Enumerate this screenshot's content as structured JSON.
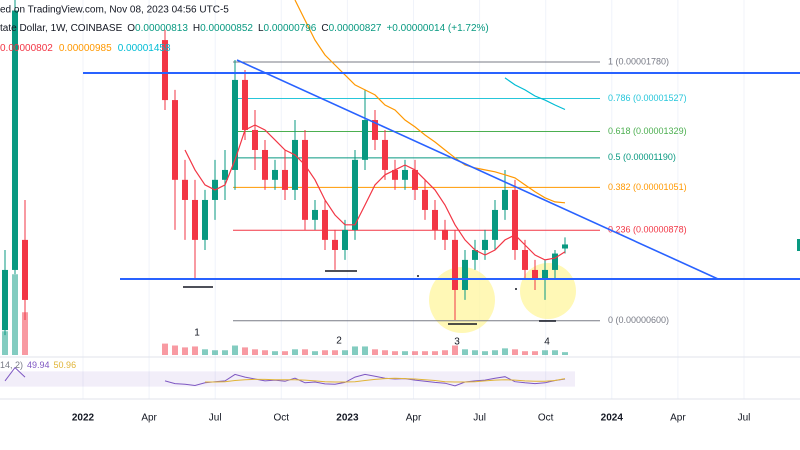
{
  "header": {
    "source": "ed on TradingView.com, Nov 08, 2023 04:56 UTC-5",
    "symbol": "tate Dollar, 1W, COINBASE",
    "ohlc_keys": [
      "O",
      "H",
      "L",
      "C"
    ],
    "change": "+0.00000014 (+1.72%)"
  },
  "chart_data": {
    "type": "candlestick",
    "log_scale": true,
    "ylim": [
      5.42e-06,
      2.31e-05
    ],
    "up_color": "#089981",
    "down_color": "#f23645",
    "candles": [
      [
        5.77e-06,
        8.08e-06,
        5.65e-06,
        7.43e-06
      ],
      [
        7.43e-06,
        2.31e-05,
        7.3e-06,
        2.21e-05
      ],
      [
        8.43e-06,
        9.97e-06,
        6.02e-06,
        6.55e-06
      ],
      null,
      null,
      null,
      null,
      null,
      null,
      null,
      null,
      null,
      null,
      null,
      null,
      null,
      [
        1.952e-05,
        2.036e-05,
        1.455e-05,
        1.517e-05
      ],
      [
        1.517e-05,
        1.583e-05,
        8.79e-06,
        1.085e-05
      ],
      [
        1.085e-05,
        1.18e-05,
        8.43e-06,
        9.97e-06
      ],
      [
        9.97e-06,
        1.085e-05,
        7.13e-06,
        8.43e-06
      ],
      [
        8.43e-06,
        1.04e-05,
        8.08e-06,
        9.97e-06
      ],
      [
        9.97e-06,
        1.18e-05,
        9.17e-06,
        1.085e-05
      ],
      [
        1.085e-05,
        1.23e-05,
        9.97e-06,
        1.131e-05
      ],
      [
        1.131e-05,
        1.795e-05,
        1.04e-05,
        1.651e-05
      ],
      [
        1.651e-05,
        1.721e-05,
        1.283e-05,
        1.338e-05
      ],
      [
        1.338e-05,
        1.455e-05,
        1.131e-05,
        1.23e-05
      ],
      [
        1.23e-05,
        1.283e-05,
        1.04e-05,
        1.085e-05
      ],
      [
        1.085e-05,
        1.18e-05,
        1.04e-05,
        1.131e-05
      ],
      [
        1.131e-05,
        1.23e-05,
        9.97e-06,
        1.04e-05
      ],
      [
        1.04e-05,
        1.395e-05,
        9.97e-06,
        1.283e-05
      ],
      [
        1.283e-05,
        1.338e-05,
        8.79e-06,
        9.17e-06
      ],
      [
        9.17e-06,
        9.97e-06,
        8.79e-06,
        9.56e-06
      ],
      [
        9.56e-06,
        9.97e-06,
        8.08e-06,
        8.43e-06
      ],
      [
        8.43e-06,
        8.79e-06,
        7.43e-06,
        8.08e-06
      ],
      [
        8.08e-06,
        9.17e-06,
        7.75e-06,
        8.79e-06
      ],
      [
        8.79e-06,
        1.23e-05,
        8.43e-06,
        1.18e-05
      ],
      [
        1.18e-05,
        1.583e-05,
        1.131e-05,
        1.395e-05
      ],
      [
        1.395e-05,
        1.455e-05,
        1.23e-05,
        1.283e-05
      ],
      [
        1.283e-05,
        1.338e-05,
        1.085e-05,
        1.131e-05
      ],
      [
        1.131e-05,
        1.18e-05,
        1.04e-05,
        1.085e-05
      ],
      [
        1.085e-05,
        1.18e-05,
        1.04e-05,
        1.131e-05
      ],
      [
        1.131e-05,
        1.18e-05,
        9.97e-06,
        1.04e-05
      ],
      [
        1.04e-05,
        1.085e-05,
        9.17e-06,
        9.56e-06
      ],
      [
        9.56e-06,
        9.97e-06,
        8.43e-06,
        8.79e-06
      ],
      [
        8.79e-06,
        9.17e-06,
        8.08e-06,
        8.43e-06
      ],
      [
        8.43e-06,
        8.79e-06,
        6.02e-06,
        6.83e-06
      ],
      [
        6.83e-06,
        8.08e-06,
        6.55e-06,
        7.75e-06
      ],
      [
        7.75e-06,
        8.43e-06,
        7.43e-06,
        8.08e-06
      ],
      [
        8.08e-06,
        8.79e-06,
        7.75e-06,
        8.43e-06
      ],
      [
        8.43e-06,
        9.97e-06,
        8.08e-06,
        9.56e-06
      ],
      [
        9.56e-06,
        1.131e-05,
        9.17e-06,
        1.04e-05
      ],
      [
        1.04e-05,
        1.085e-05,
        7.75e-06,
        8.08e-06
      ],
      [
        8.08e-06,
        8.43e-06,
        7.13e-06,
        7.43e-06
      ],
      [
        7.43e-06,
        7.75e-06,
        6.83e-06,
        7.13e-06
      ],
      [
        7.13e-06,
        7.75e-06,
        6.55e-06,
        7.43e-06
      ],
      [
        7.43e-06,
        8.08e-06,
        7.13e-06,
        7.96e-06
      ],
      [
        8.13e-06,
        8.52e-06,
        7.96e-06,
        8.27e-06
      ]
    ],
    "volume": {
      "ylim": [
        0,
        100
      ],
      "values": [
        25,
        85,
        45,
        null,
        null,
        null,
        null,
        null,
        null,
        null,
        null,
        null,
        null,
        null,
        null,
        null,
        12,
        10,
        8,
        9,
        6,
        5,
        5,
        10,
        8,
        6,
        5,
        4,
        4,
        6,
        6,
        4,
        5,
        5,
        5,
        9,
        9,
        6,
        5,
        4,
        4,
        4,
        4,
        4,
        5,
        10,
        6,
        5,
        4,
        5,
        7,
        6,
        4,
        4,
        5,
        5,
        3
      ]
    },
    "indicators": [
      {
        "color": "#f23645",
        "values": [
          null,
          null,
          null,
          null,
          null,
          null,
          null,
          null,
          null,
          null,
          null,
          null,
          null,
          null,
          null,
          null,
          null,
          null,
          1.23e-05,
          1.131e-05,
          1.062e-05,
          1.04e-05,
          1.062e-05,
          1.18e-05,
          1.338e-05,
          1.366e-05,
          1.338e-05,
          1.283e-05,
          1.23e-05,
          1.205e-05,
          1.155e-05,
          1.085e-05,
          9.97e-06,
          9.36e-06,
          8.98e-06,
          8.98e-06,
          9.76e-06,
          1.062e-05,
          1.108e-05,
          1.131e-05,
          1.155e-05,
          1.131e-05,
          1.085e-05,
          1.04e-05,
          9.76e-06,
          8.98e-06,
          8.43e-06,
          8.08e-06,
          7.91e-06,
          8.08e-06,
          8.43e-06,
          8.61e-06,
          8.25e-06,
          7.91e-06,
          7.75e-06,
          7.81e-06,
          8.02e-06
        ]
      },
      {
        "color": "#ff9800",
        "values": [
          null,
          null,
          null,
          null,
          null,
          null,
          null,
          null,
          null,
          null,
          null,
          null,
          null,
          null,
          null,
          null,
          null,
          null,
          null,
          null,
          null,
          null,
          null,
          null,
          null,
          null,
          null,
          null,
          null,
          2.31e-05,
          2.123e-05,
          1.952e-05,
          1.833e-05,
          1.758e-05,
          1.686e-05,
          1.617e-05,
          1.583e-05,
          1.55e-05,
          1.486e-05,
          1.455e-05,
          1.395e-05,
          1.355e-05,
          1.31e-05,
          1.272e-05,
          1.23e-05,
          1.19e-05,
          1.155e-05,
          1.141e-05,
          1.131e-05,
          1.122e-05,
          1.108e-05,
          1.094e-05,
          1.062e-05,
          1.032e-05,
          1.006e-05,
          9.89e-06,
          9.85e-06
        ]
      },
      {
        "color": "#00bcd4",
        "values": [
          null,
          null,
          null,
          null,
          null,
          null,
          null,
          null,
          null,
          null,
          null,
          null,
          null,
          null,
          null,
          null,
          null,
          null,
          null,
          null,
          null,
          null,
          null,
          null,
          null,
          null,
          null,
          null,
          null,
          null,
          null,
          null,
          null,
          null,
          null,
          null,
          null,
          null,
          null,
          null,
          null,
          null,
          null,
          null,
          null,
          null,
          null,
          null,
          null,
          null,
          1.665e-05,
          1.617e-05,
          1.583e-05,
          1.543e-05,
          1.517e-05,
          1.486e-05,
          1.458e-05
        ]
      }
    ],
    "fib": [
      {
        "label": "1 (0.00001780)",
        "value": 1.78e-05,
        "color": "#787b86"
      },
      {
        "label": "0.786 (0.00001527)",
        "value": 1.527e-05,
        "color": "#26c6da"
      },
      {
        "label": "0.618 (0.00001329)",
        "value": 1.329e-05,
        "color": "#4caf50"
      },
      {
        "label": "0.5 (0.00001190)",
        "value": 1.19e-05,
        "color": "#089981"
      },
      {
        "label": "0.382 (0.00001051)",
        "value": 1.051e-05,
        "color": "#ff9800"
      },
      {
        "label": "0.236 (0.00000878)",
        "value": 8.78e-06,
        "color": "#f23645"
      },
      {
        "label": "0 (0.00000600)",
        "value": 6e-06,
        "color": "#787b86"
      }
    ],
    "rsi": {
      "label": "14, 2)",
      "ylim": [
        0,
        100
      ],
      "color": "#7e57c2",
      "ma_color": "#e0b437",
      "values": [
        45,
        80,
        55,
        null,
        null,
        null,
        null,
        null,
        null,
        null,
        null,
        null,
        null,
        null,
        null,
        null,
        45,
        38,
        36,
        33,
        40,
        43,
        45,
        62,
        55,
        50,
        45,
        47,
        44,
        52,
        40,
        42,
        37,
        36,
        41,
        55,
        62,
        57,
        52,
        50,
        51,
        47,
        44,
        41,
        39,
        32,
        42,
        45,
        47,
        52,
        56,
        43,
        40,
        38,
        40,
        46,
        49.94
      ],
      "ma_values": [
        null,
        null,
        null,
        null,
        null,
        null,
        null,
        null,
        null,
        null,
        null,
        null,
        null,
        null,
        null,
        null,
        null,
        null,
        null,
        null,
        42,
        42,
        43,
        46,
        48,
        49,
        49,
        48,
        48,
        48,
        47,
        45,
        43,
        42,
        42,
        43,
        46,
        49,
        51,
        52,
        51,
        50,
        48,
        46,
        43,
        42,
        42,
        43,
        45,
        47,
        48,
        47,
        45,
        44,
        44,
        46,
        50.96
      ]
    },
    "annotations": [
      "1",
      "2",
      "3",
      "4"
    ],
    "categories": [
      "2022",
      "Apr",
      "Jul",
      "Oct",
      "2023",
      "Apr",
      "Jul",
      "Oct",
      "2024",
      "Apr",
      "Jul"
    ]
  }
}
